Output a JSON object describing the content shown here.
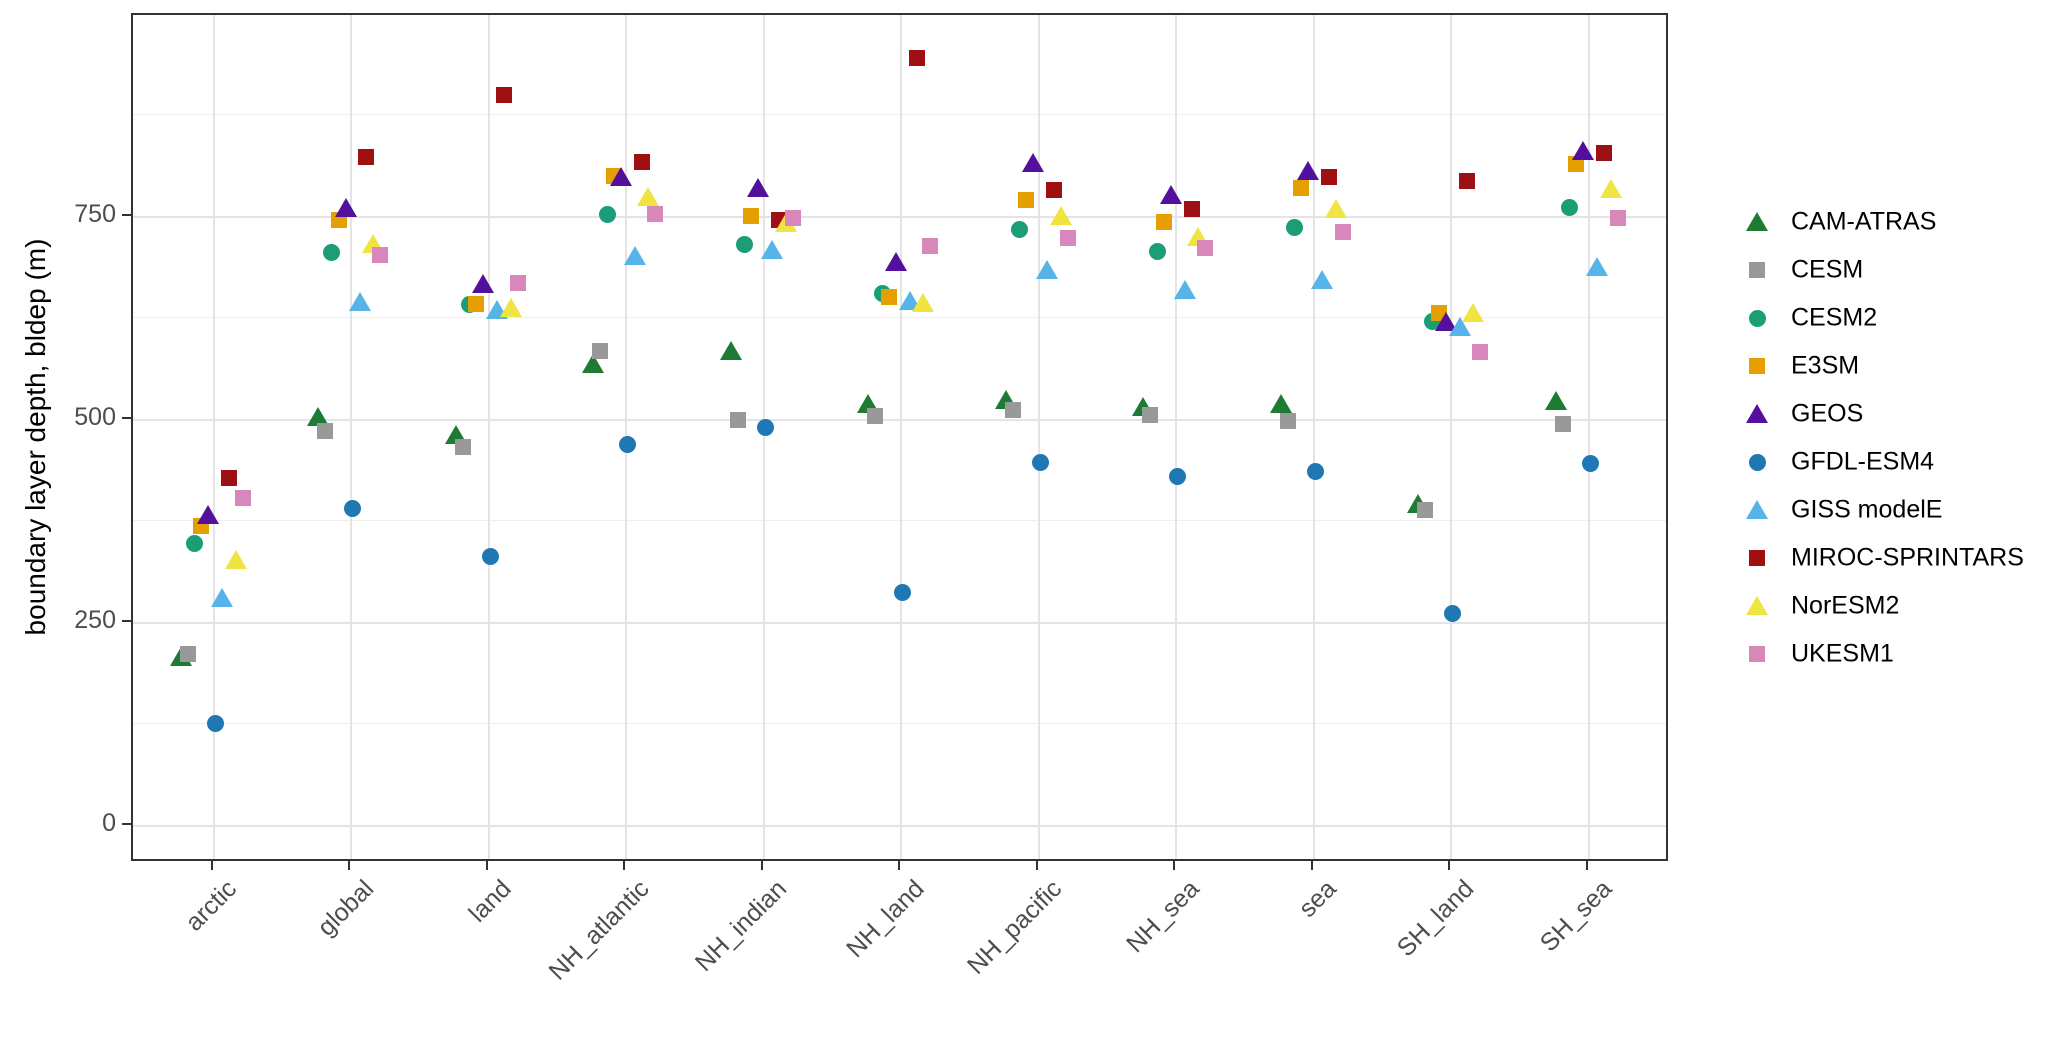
{
  "chart_data": {
    "type": "scatter",
    "title": "",
    "xlabel": "",
    "ylabel": "boundary layer depth, bldep (m)",
    "categories": [
      "arctic",
      "global",
      "land",
      "NH_atlantic",
      "NH_indian",
      "NH_land",
      "NH_pacific",
      "NH_sea",
      "sea",
      "SH_land",
      "SH_sea"
    ],
    "yticks": [
      0,
      250,
      500,
      750
    ],
    "minor_gridlines": [
      125,
      375,
      625,
      875
    ],
    "ylim": [
      -46,
      998
    ],
    "grid": "major+minor",
    "legend_position": "right",
    "series": [
      {
        "name": "CAM-ATRAS",
        "marker": "triangle",
        "color": "#1E7B34",
        "values": [
          206,
          502,
          479,
          567,
          583,
          518,
          522,
          514,
          517,
          394,
          521
        ]
      },
      {
        "name": "CESM",
        "marker": "square",
        "color": "#999999",
        "values": [
          209,
          483,
          464,
          582,
          497,
          502,
          510,
          503,
          496,
          386,
          492
        ]
      },
      {
        "name": "CESM2",
        "marker": "circle",
        "color": "#1B9E77",
        "values": [
          345,
          703,
          639,
          750,
          713,
          653,
          732,
          705,
          734,
          618,
          759
        ]
      },
      {
        "name": "E3SM",
        "marker": "square",
        "color": "#E69F00",
        "values": [
          366,
          743,
          640,
          798,
          748,
          649,
          768,
          741,
          783,
          629,
          813
        ]
      },
      {
        "name": "GEOS",
        "marker": "triangle",
        "color": "#53109D",
        "values": [
          381,
          759,
          665,
          797,
          784,
          692,
          814,
          775,
          804,
          619,
          829
        ]
      },
      {
        "name": "GFDL-ESM4",
        "marker": "circle",
        "color": "#1F78B4",
        "values": [
          123,
          388,
          329,
          467,
          488,
          285,
          445,
          427,
          434,
          259,
          443
        ]
      },
      {
        "name": "GISS modelE",
        "marker": "triangle",
        "color": "#56B4E9",
        "values": [
          279,
          643,
          633,
          700,
          707,
          645,
          683,
          658,
          670,
          612,
          686
        ]
      },
      {
        "name": "MIROC-SPRINTARS",
        "marker": "square",
        "color": "#9E1013",
        "values": [
          426,
          821,
          898,
          815,
          743,
          943,
          780,
          757,
          796,
          791,
          826
        ]
      },
      {
        "name": "NorESM2",
        "marker": "triangle",
        "color": "#F0E442",
        "values": [
          325,
          715,
          636,
          772,
          740,
          642,
          749,
          723,
          758,
          630,
          782
        ]
      },
      {
        "name": "UKESM1",
        "marker": "square",
        "color": "#D787BA",
        "values": [
          401,
          700,
          666,
          751,
          746,
          711,
          721,
          709,
          729,
          581,
          746
        ]
      }
    ]
  }
}
